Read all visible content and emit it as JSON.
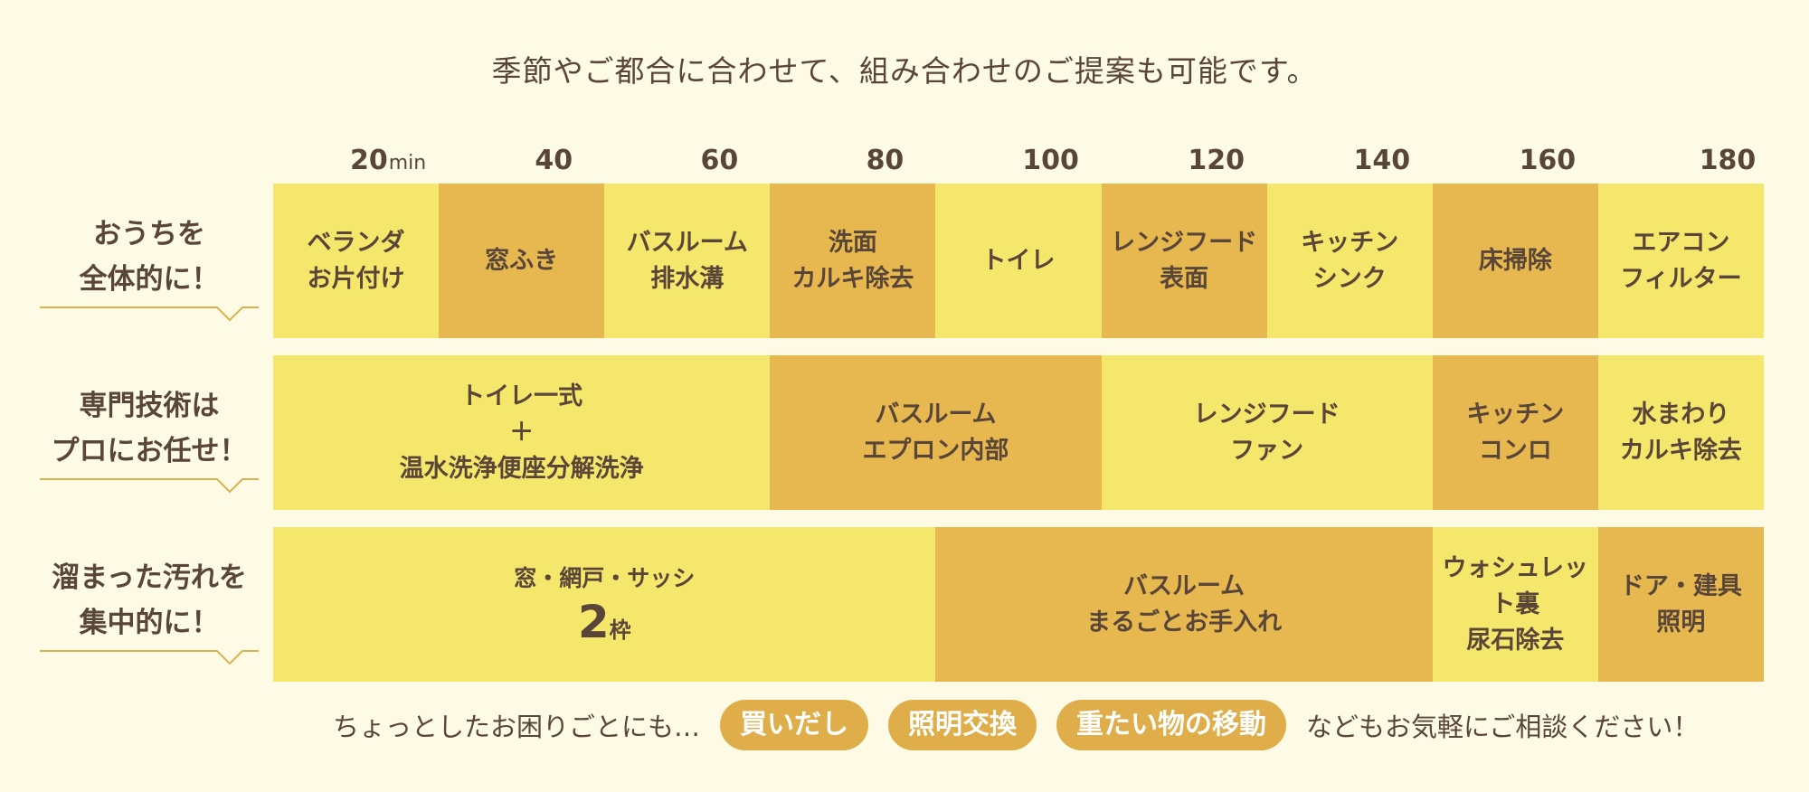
{
  "headline": "季節やご都合に合わせて、組み合わせのご提案も可能です。",
  "timeline": {
    "ticks": [
      {
        "value": "20",
        "unit": "min"
      },
      {
        "value": "40",
        "unit": ""
      },
      {
        "value": "60",
        "unit": ""
      },
      {
        "value": "80",
        "unit": ""
      },
      {
        "value": "100",
        "unit": ""
      },
      {
        "value": "120",
        "unit": ""
      },
      {
        "value": "140",
        "unit": ""
      },
      {
        "value": "160",
        "unit": ""
      },
      {
        "value": "180",
        "unit": ""
      }
    ]
  },
  "rows": [
    {
      "label": "おうちを\n全体的に！",
      "cells": [
        {
          "text": "ベランダ\nお片付け",
          "start": 0,
          "end": 20,
          "tone": "light"
        },
        {
          "text": "窓ふき",
          "start": 20,
          "end": 40,
          "tone": "dark"
        },
        {
          "text": "バスルーム\n排水溝",
          "start": 40,
          "end": 60,
          "tone": "light"
        },
        {
          "text": "洗面\nカルキ除去",
          "start": 60,
          "end": 80,
          "tone": "dark"
        },
        {
          "text": "トイレ",
          "start": 80,
          "end": 100,
          "tone": "light"
        },
        {
          "text": "レンジフード\n表面",
          "start": 100,
          "end": 120,
          "tone": "dark"
        },
        {
          "text": "キッチン\nシンク",
          "start": 120,
          "end": 140,
          "tone": "light"
        },
        {
          "text": "床掃除",
          "start": 140,
          "end": 160,
          "tone": "dark"
        },
        {
          "text": "エアコン\nフィルター",
          "start": 160,
          "end": 180,
          "tone": "light"
        }
      ]
    },
    {
      "label": "専門技術は\nプロにお任せ！",
      "cells": [
        {
          "text": "トイレ一式\n＋\n温水洗浄便座分解洗浄",
          "start": 0,
          "end": 60,
          "tone": "light"
        },
        {
          "text": "バスルーム\nエプロン内部",
          "start": 60,
          "end": 100,
          "tone": "dark"
        },
        {
          "text": "レンジフード\nファン",
          "start": 100,
          "end": 140,
          "tone": "light"
        },
        {
          "text": "キッチン\nコンロ",
          "start": 140,
          "end": 160,
          "tone": "dark"
        },
        {
          "text": "水まわり\nカルキ除去",
          "start": 160,
          "end": 180,
          "tone": "light"
        }
      ]
    },
    {
      "label": "溜まった汚れを\n集中的に！",
      "cells": [
        {
          "text": "窓・網戸・サッシ",
          "count": "2",
          "count_unit": "枠",
          "start": 0,
          "end": 80,
          "tone": "light"
        },
        {
          "text": "バスルーム\nまるごとお手入れ",
          "start": 80,
          "end": 140,
          "tone": "dark"
        },
        {
          "text": "ウォシュレット裏\n尿石除去",
          "start": 140,
          "end": 160,
          "tone": "light"
        },
        {
          "text": "ドア・建具\n照明",
          "start": 160,
          "end": 180,
          "tone": "dark"
        }
      ]
    }
  ],
  "footer": {
    "prefix": "ちょっとしたお困りごとにも…",
    "pills": [
      "買いだし",
      "照明交換",
      "重たい物の移動"
    ],
    "suffix": "などもお気軽にご相談ください！"
  },
  "colors": {
    "light": "#f5e66c",
    "dark": "#e6b84f",
    "pill": "#dfae4a",
    "text": "#5a4638",
    "background": "#fdfbe6"
  }
}
